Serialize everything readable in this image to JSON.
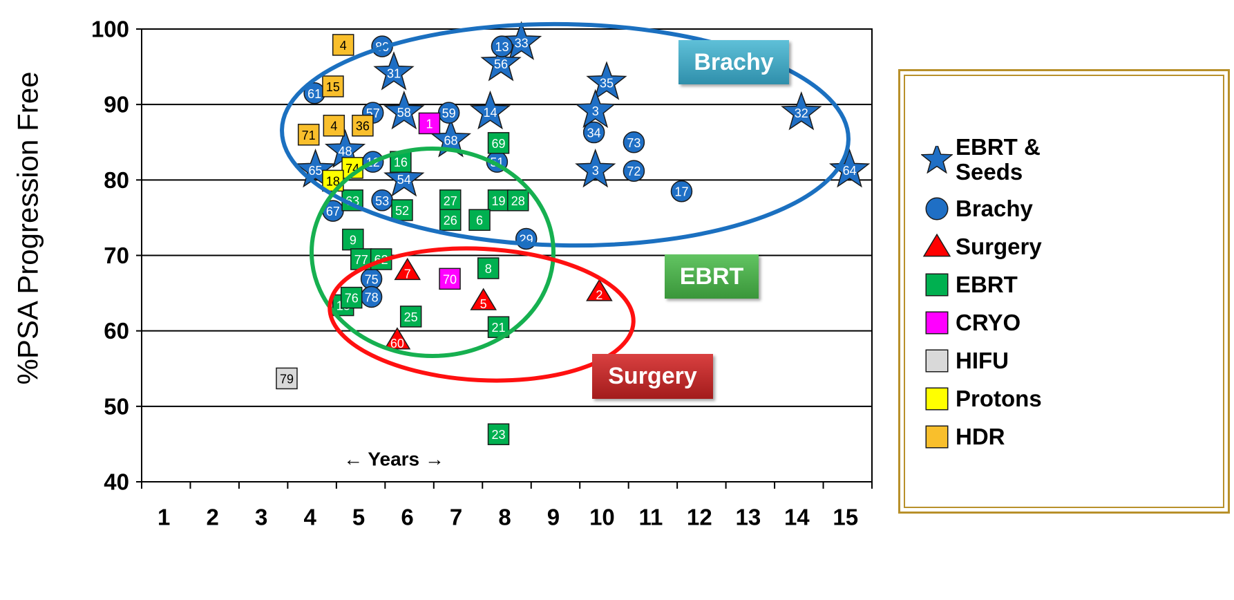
{
  "chart_data": {
    "type": "scatter",
    "y_label": "%PSA Progression Free",
    "x_annotation": "← Years →",
    "xlim": [
      0.5,
      15.5
    ],
    "xticks": [
      1,
      2,
      3,
      4,
      5,
      6,
      7,
      8,
      9,
      10,
      11,
      12,
      13,
      14,
      15
    ],
    "ylim": [
      40,
      100
    ],
    "yticks": [
      40,
      50,
      60,
      70,
      80,
      90,
      100
    ],
    "grid": true,
    "legend": "right",
    "annotations": [
      "Brachy",
      "EBRT",
      "Surgery"
    ],
    "series": [
      {
        "name": "EBRT & Seeds",
        "marker": "star",
        "color": "#1f6fc5",
        "label_color": "#ffffff",
        "x": [
          8.3,
          7.88,
          5.68,
          10.05,
          5.89,
          7.66,
          9.82,
          14.05,
          6.85,
          4.68,
          4.07,
          5.89,
          9.82,
          15.04
        ],
        "y": [
          98.2,
          95.4,
          94.2,
          92.9,
          89.0,
          89.0,
          89.2,
          88.9,
          85.3,
          83.9,
          81.3,
          80.1,
          81.3,
          81.3
        ],
        "point_labels": [
          "33",
          "56",
          "31",
          "35",
          "58",
          "14",
          "3",
          "32",
          "68",
          "48",
          "65",
          "54",
          "3",
          "64"
        ]
      },
      {
        "name": "Brachy",
        "marker": "circle",
        "color": "#1f6fc5",
        "label_color": "#ffffff",
        "x": [
          5.44,
          7.9,
          4.05,
          5.25,
          6.81,
          9.79,
          10.61,
          5.25,
          7.8,
          10.61,
          11.59,
          5.44,
          4.43,
          8.4,
          5.22,
          5.22
        ],
        "y": [
          97.7,
          97.7,
          91.5,
          88.9,
          88.9,
          86.3,
          85.0,
          82.4,
          82.4,
          81.2,
          78.5,
          77.3,
          75.9,
          72.2,
          66.9,
          64.5
        ],
        "point_labels": [
          "80",
          "13",
          "61",
          "57",
          "59",
          "34",
          "73",
          "12",
          "51",
          "72",
          "17",
          "53",
          "67",
          "29",
          "75",
          "78"
        ]
      },
      {
        "name": "Surgery",
        "marker": "triangle",
        "color": "#ff0000",
        "label_color": "#ffffff",
        "x": [
          5.96,
          7.52,
          9.9,
          5.75
        ],
        "y": [
          68.0,
          64.0,
          65.2,
          58.8
        ],
        "point_labels": [
          "7",
          "5",
          "2",
          "60"
        ]
      },
      {
        "name": "EBRT",
        "marker": "square",
        "color": "#00b050",
        "label_color": "#ffffff",
        "x": [
          7.83,
          5.82,
          4.83,
          5.85,
          6.84,
          6.84,
          7.83,
          8.23,
          7.44,
          4.84,
          5.01,
          5.42,
          7.62,
          4.64,
          4.81,
          6.03,
          7.83,
          7.83
        ],
        "y": [
          84.9,
          82.4,
          77.3,
          76.0,
          77.3,
          74.7,
          77.3,
          77.3,
          74.7,
          72.1,
          69.5,
          69.5,
          68.3,
          63.4,
          64.4,
          61.9,
          60.5,
          46.3
        ],
        "point_labels": [
          "69",
          "16",
          "63",
          "52",
          "27",
          "26",
          "19",
          "28",
          "6",
          "9",
          "77",
          "62",
          "8",
          "13",
          "76",
          "25",
          "21",
          "23"
        ]
      },
      {
        "name": "CRYO",
        "marker": "square",
        "color": "#ff00ff",
        "label_color": "#ffffff",
        "x": [
          6.41,
          6.83
        ],
        "y": [
          87.5,
          66.9
        ],
        "point_labels": [
          "1",
          "70"
        ]
      },
      {
        "name": "HIFU",
        "marker": "square",
        "color": "#d9d9d9",
        "label_color": "#000000",
        "x": [
          3.48
        ],
        "y": [
          53.7
        ],
        "point_labels": [
          "79"
        ]
      },
      {
        "name": "Protons",
        "marker": "square",
        "color": "#ffff00",
        "label_color": "#000000",
        "x": [
          4.83,
          4.43
        ],
        "y": [
          81.6,
          79.9
        ],
        "point_labels": [
          "74",
          "18"
        ]
      },
      {
        "name": "HDR",
        "marker": "square",
        "color": "#f9bf2c",
        "label_color": "#000000",
        "x": [
          4.64,
          4.43,
          3.93,
          4.45,
          5.04
        ],
        "y": [
          97.9,
          92.4,
          86.0,
          87.2,
          87.2
        ],
        "point_labels": [
          "4",
          "15",
          "71",
          "4",
          "36"
        ]
      }
    ]
  }
}
